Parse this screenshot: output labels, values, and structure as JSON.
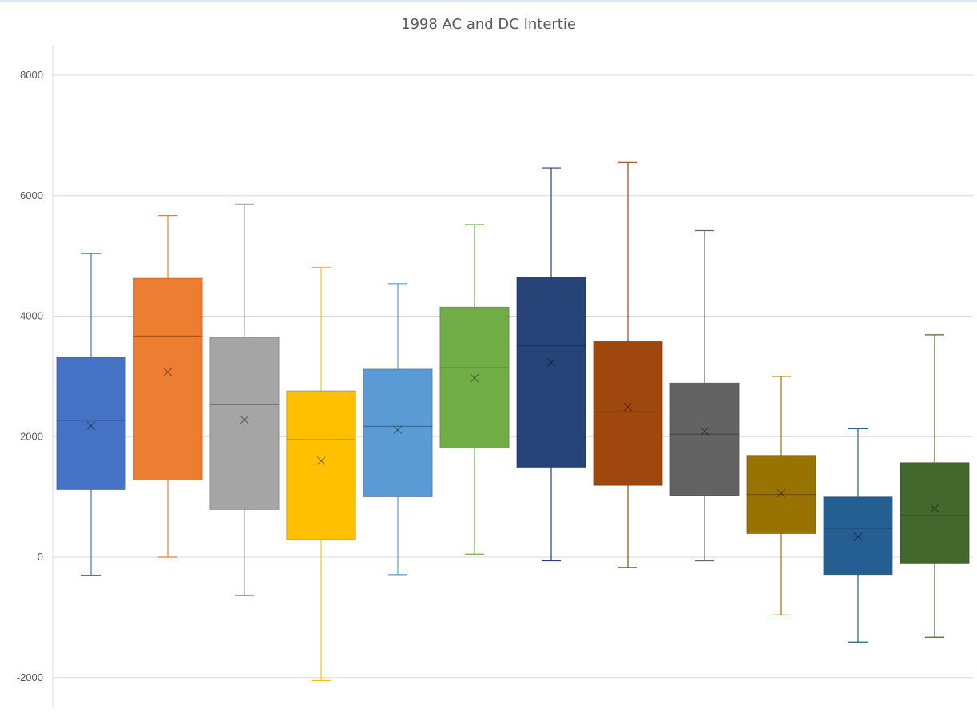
{
  "chart_data": {
    "type": "box",
    "title": "1998 AC and DC Intertie",
    "xlabel": "",
    "ylabel": "",
    "ylim": [
      -2000,
      8000
    ],
    "yticks": [
      -2000,
      0,
      2000,
      4000,
      6000,
      8000
    ],
    "grid": true,
    "legend": "none",
    "boxes": [
      {
        "color": "#4472C4",
        "min": -300,
        "q1": 1120,
        "median": 2270,
        "q3": 3320,
        "max": 5040,
        "mean": 2180
      },
      {
        "color": "#ED7D31",
        "min": 0,
        "q1": 1280,
        "median": 3670,
        "q3": 4630,
        "max": 5670,
        "mean": 3070
      },
      {
        "color": "#A5A5A5",
        "min": -630,
        "q1": 790,
        "median": 2530,
        "q3": 3650,
        "max": 5860,
        "mean": 2280
      },
      {
        "color": "#FFC000",
        "min": -2050,
        "q1": 290,
        "median": 1950,
        "q3": 2760,
        "max": 4810,
        "mean": 1600
      },
      {
        "color": "#5B9BD5",
        "min": -290,
        "q1": 1000,
        "median": 2170,
        "q3": 3120,
        "max": 4540,
        "mean": 2110
      },
      {
        "color": "#70AD47",
        "min": 50,
        "q1": 1810,
        "median": 3140,
        "q3": 4150,
        "max": 5520,
        "mean": 2970
      },
      {
        "color": "#264478",
        "min": -60,
        "q1": 1490,
        "median": 3510,
        "q3": 4650,
        "max": 6460,
        "mean": 3230
      },
      {
        "color": "#9E480E",
        "min": -170,
        "q1": 1190,
        "median": 2410,
        "q3": 3580,
        "max": 6550,
        "mean": 2490
      },
      {
        "color": "#636363",
        "min": -60,
        "q1": 1020,
        "median": 2040,
        "q3": 2890,
        "max": 5420,
        "mean": 2090
      },
      {
        "color": "#997300",
        "min": -960,
        "q1": 390,
        "median": 1040,
        "q3": 1690,
        "max": 3000,
        "mean": 1060
      },
      {
        "color": "#255E91",
        "min": -1410,
        "q1": -290,
        "median": 480,
        "q3": 1000,
        "max": 2130,
        "mean": 340
      },
      {
        "color": "#43682B",
        "min": -1330,
        "q1": -100,
        "median": 690,
        "q3": 1570,
        "max": 3690,
        "mean": 810
      }
    ]
  }
}
